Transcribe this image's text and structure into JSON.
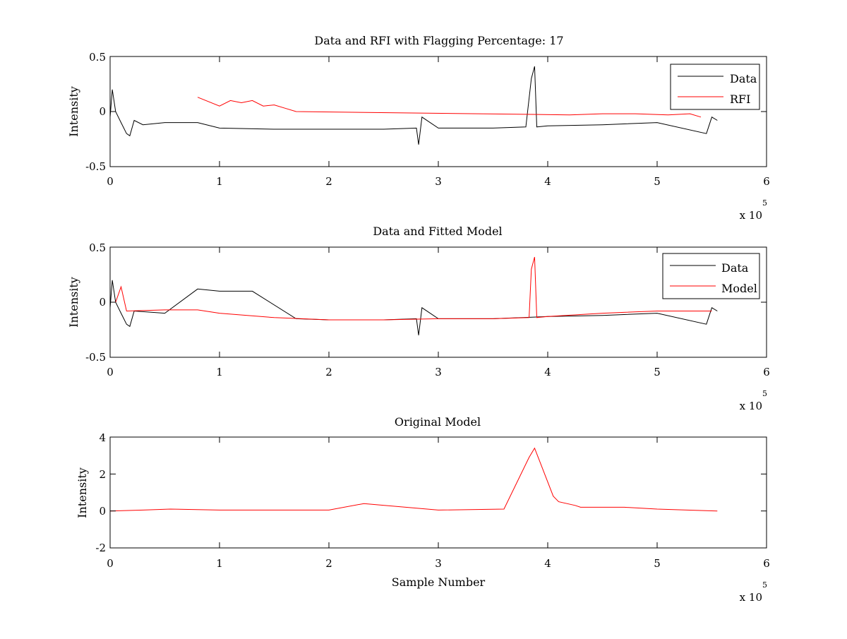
{
  "colors": {
    "data": "#000000",
    "rfi": "#ff0000",
    "model": "#ff0000",
    "axes": "#000000",
    "background": "#ffffff"
  },
  "x_multiplier": {
    "prefix": "x 10",
    "exponent": "5"
  },
  "chart_data": [
    {
      "type": "line",
      "title": "Data and RFI with Flagging Percentage: 17",
      "xlabel": "",
      "ylabel": "Intensity",
      "xlim": [
        0,
        600000
      ],
      "ylim": [
        -0.5,
        0.5
      ],
      "x_ticks": [
        0,
        100000,
        200000,
        300000,
        400000,
        500000,
        600000
      ],
      "x_tick_labels": [
        "0",
        "1",
        "2",
        "3",
        "4",
        "5",
        "6"
      ],
      "y_ticks": [
        -0.5,
        0,
        0.5
      ],
      "y_tick_labels": [
        "-0.5",
        "0",
        "0.5"
      ],
      "grid": false,
      "legend_position": "top-right",
      "series": [
        {
          "name": "Data",
          "color": "#000000",
          "x": [
            0,
            2000,
            5000,
            10000,
            15000,
            18000,
            22000,
            30000,
            50000,
            80000,
            100000,
            150000,
            200000,
            250000,
            280000,
            282000,
            285000,
            300000,
            350000,
            380000,
            385000,
            388000,
            390000,
            400000,
            450000,
            500000,
            545000,
            550000,
            555000
          ],
          "y": [
            -0.05,
            0.2,
            0.0,
            -0.1,
            -0.2,
            -0.22,
            -0.08,
            -0.12,
            -0.1,
            -0.1,
            -0.15,
            -0.16,
            -0.16,
            -0.16,
            -0.15,
            -0.3,
            -0.05,
            -0.15,
            -0.15,
            -0.14,
            0.3,
            0.41,
            -0.14,
            -0.13,
            -0.12,
            -0.1,
            -0.2,
            -0.05,
            -0.08
          ]
        },
        {
          "name": "RFI",
          "color": "#ff0000",
          "x": [
            80000,
            100000,
            110000,
            120000,
            130000,
            140000,
            150000,
            160000,
            170000,
            420000,
            450000,
            480000,
            510000,
            530000,
            540000
          ],
          "y": [
            0.13,
            0.05,
            0.1,
            0.08,
            0.1,
            0.05,
            0.06,
            0.03,
            0.0,
            -0.03,
            -0.02,
            -0.02,
            -0.03,
            -0.02,
            -0.05
          ]
        }
      ]
    },
    {
      "type": "line",
      "title": "Data and Fitted Model",
      "xlabel": "",
      "ylabel": "Intensity",
      "xlim": [
        0,
        600000
      ],
      "ylim": [
        -0.5,
        0.5
      ],
      "x_ticks": [
        0,
        100000,
        200000,
        300000,
        400000,
        500000,
        600000
      ],
      "x_tick_labels": [
        "0",
        "1",
        "2",
        "3",
        "4",
        "5",
        "6"
      ],
      "y_ticks": [
        -0.5,
        0,
        0.5
      ],
      "y_tick_labels": [
        "-0.5",
        "0",
        "0.5"
      ],
      "grid": false,
      "legend_position": "top-right",
      "series": [
        {
          "name": "Data",
          "color": "#000000",
          "x": [
            0,
            2000,
            5000,
            10000,
            15000,
            18000,
            22000,
            50000,
            80000,
            100000,
            130000,
            170000,
            200000,
            250000,
            280000,
            282000,
            285000,
            300000,
            350000,
            400000,
            450000,
            500000,
            545000,
            550000,
            555000
          ],
          "y": [
            -0.05,
            0.2,
            0.0,
            -0.1,
            -0.2,
            -0.22,
            -0.08,
            -0.1,
            0.12,
            0.1,
            0.1,
            -0.15,
            -0.16,
            -0.16,
            -0.15,
            -0.3,
            -0.05,
            -0.15,
            -0.15,
            -0.13,
            -0.12,
            -0.1,
            -0.2,
            -0.05,
            -0.08
          ]
        },
        {
          "name": "Model",
          "color": "#ff0000",
          "x": [
            0,
            5000,
            10000,
            15000,
            50000,
            80000,
            100000,
            150000,
            200000,
            250000,
            300000,
            350000,
            383000,
            385000,
            388000,
            390000,
            400000,
            450000,
            500000,
            550000
          ],
          "y": [
            0.0,
            0.0,
            0.14,
            -0.08,
            -0.07,
            -0.07,
            -0.1,
            -0.14,
            -0.16,
            -0.16,
            -0.15,
            -0.15,
            -0.14,
            0.3,
            0.41,
            -0.14,
            -0.13,
            -0.1,
            -0.08,
            -0.08
          ]
        }
      ]
    },
    {
      "type": "line",
      "title": "Original Model",
      "xlabel": "Sample Number",
      "ylabel": "Intensity",
      "xlim": [
        0,
        600000
      ],
      "ylim": [
        -2,
        4
      ],
      "x_ticks": [
        0,
        100000,
        200000,
        300000,
        400000,
        500000,
        600000
      ],
      "x_tick_labels": [
        "0",
        "1",
        "2",
        "3",
        "4",
        "5",
        "6"
      ],
      "y_ticks": [
        -2,
        0,
        2,
        4
      ],
      "y_tick_labels": [
        "-2",
        "0",
        "2",
        "4"
      ],
      "grid": false,
      "legend_position": "none",
      "series": [
        {
          "name": "",
          "color": "#ff0000",
          "x": [
            0,
            30000,
            55000,
            100000,
            150000,
            200000,
            232000,
            300000,
            360000,
            383000,
            388000,
            405000,
            410000,
            425000,
            430000,
            470000,
            500000,
            555000
          ],
          "y": [
            0,
            0.05,
            0.1,
            0.05,
            0.05,
            0.05,
            0.4,
            0.05,
            0.1,
            2.9,
            3.4,
            0.8,
            0.5,
            0.3,
            0.2,
            0.2,
            0.1,
            0
          ]
        }
      ]
    }
  ]
}
